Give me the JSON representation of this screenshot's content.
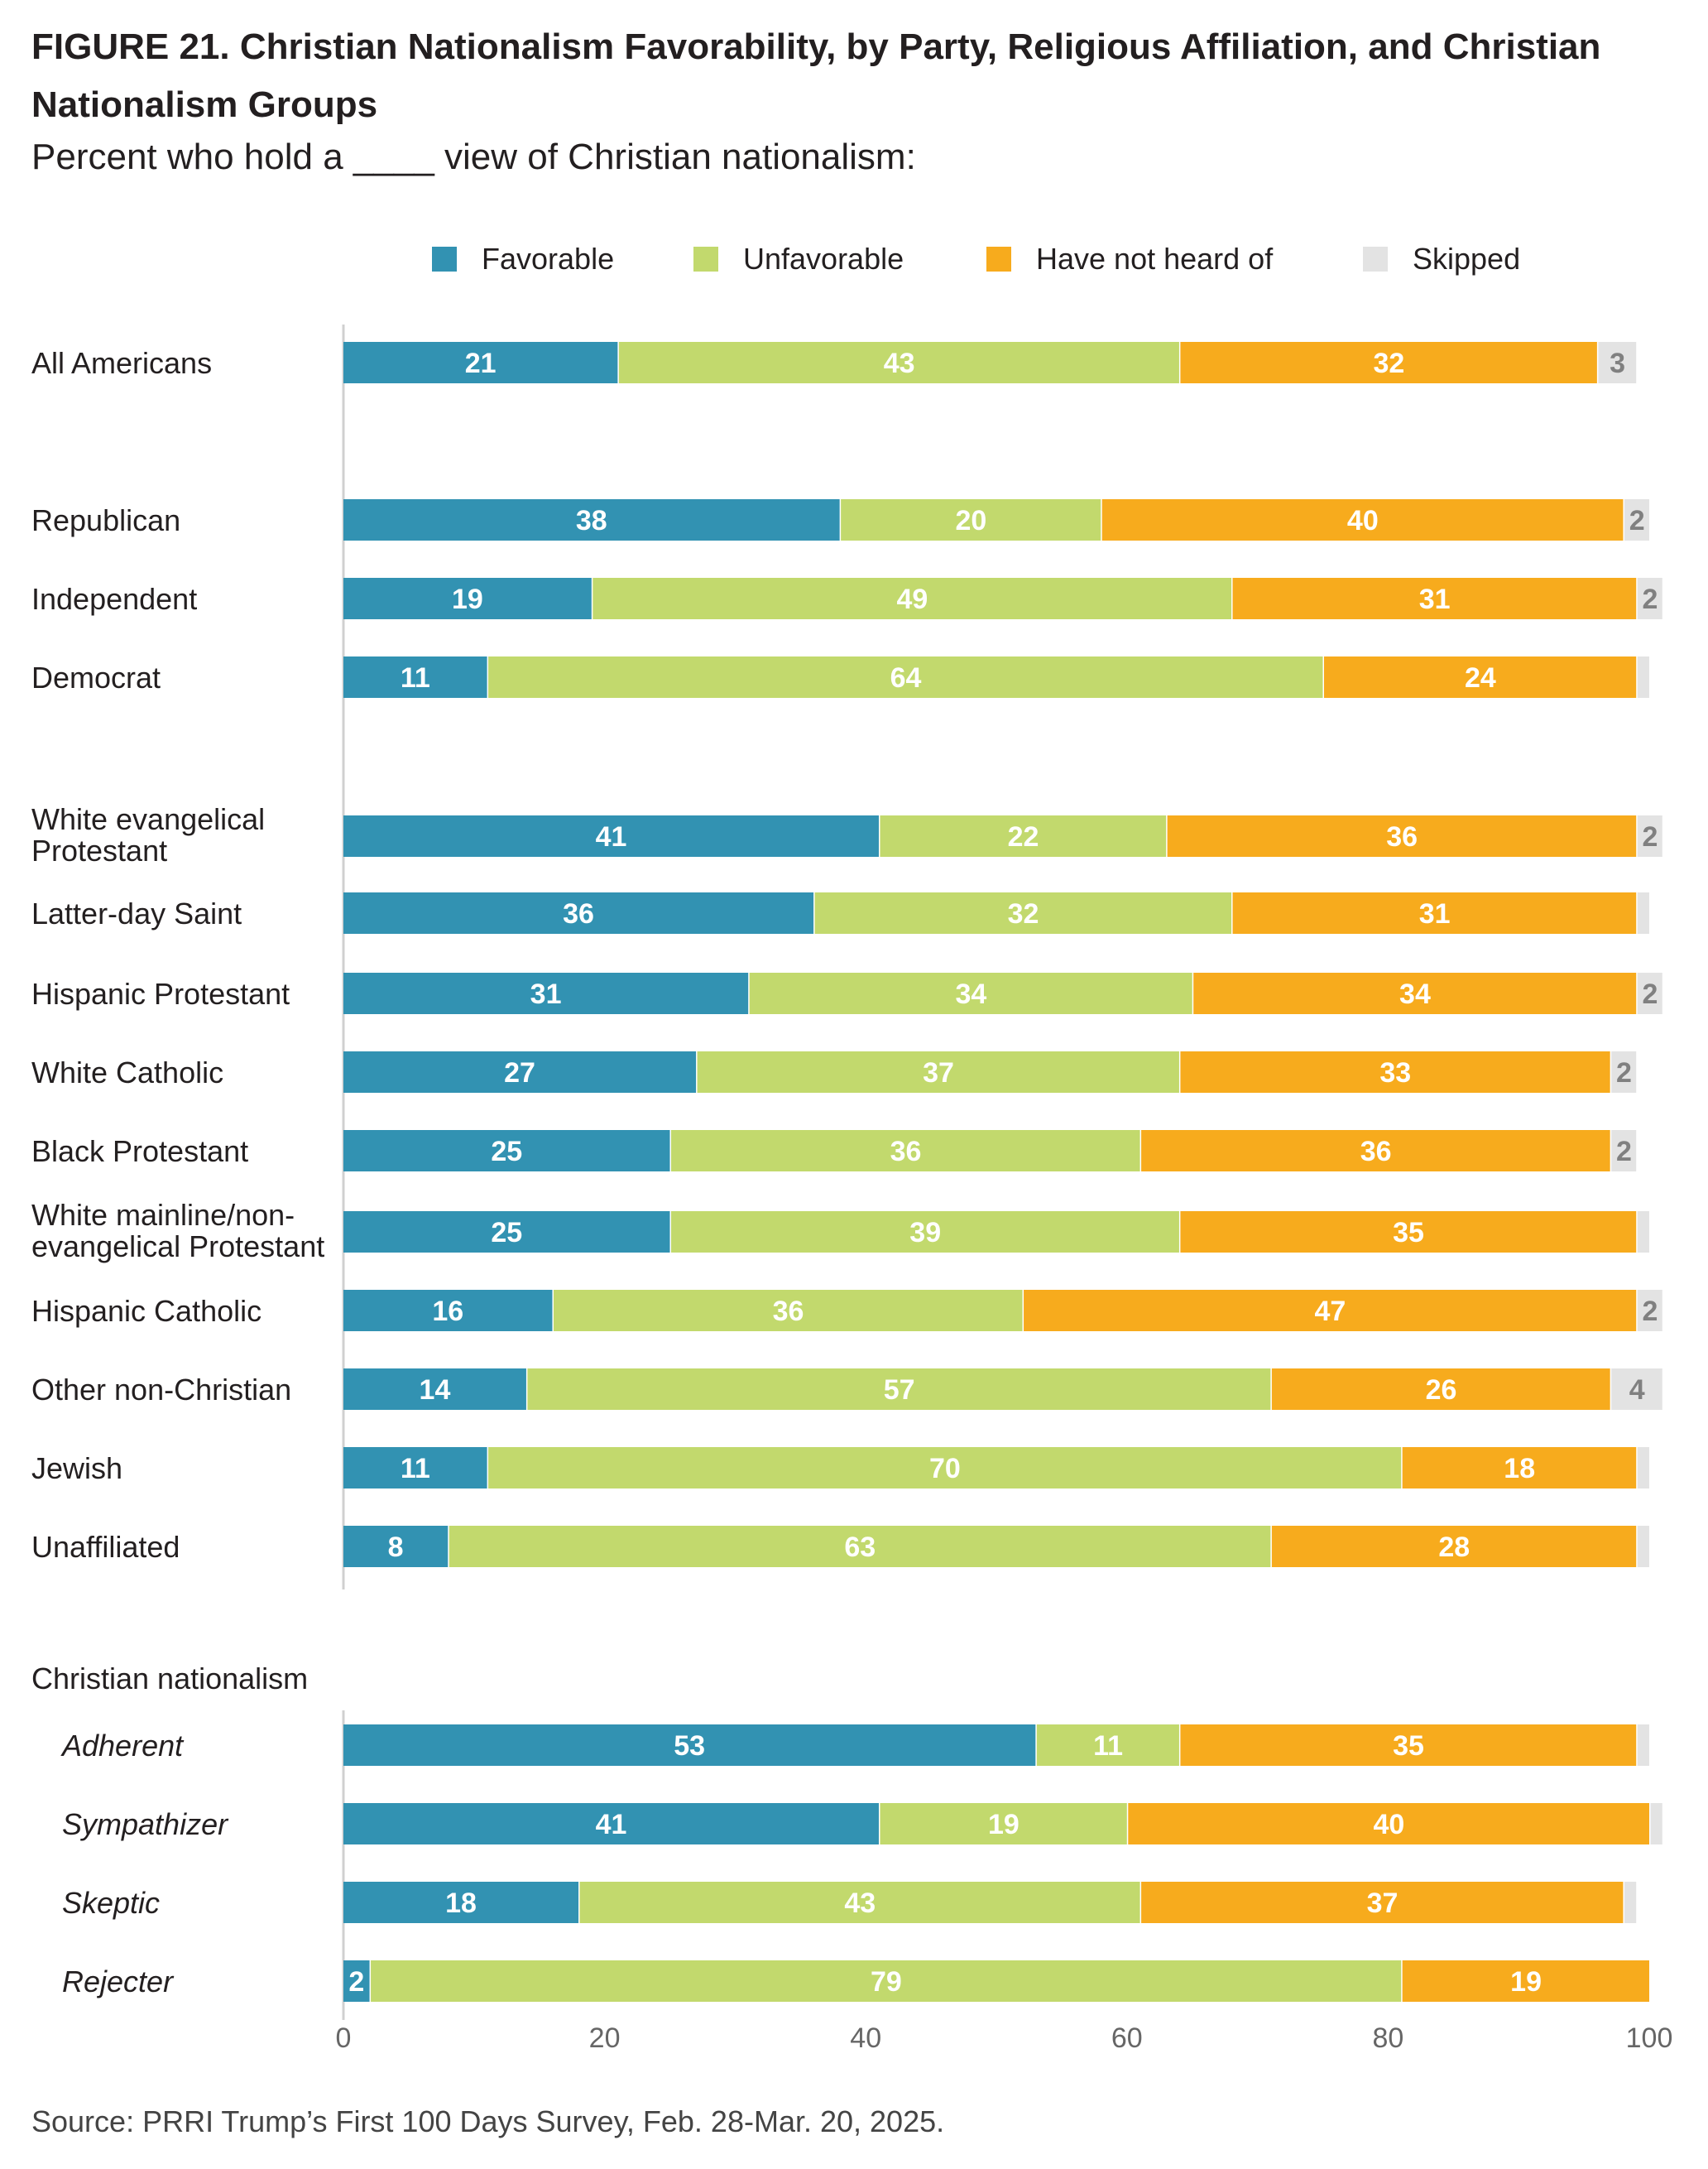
{
  "chart_data": {
    "type": "bar",
    "orientation": "horizontal",
    "stacked": true,
    "title": "FIGURE 21.  Christian Nationalism Favorability, by Party, Religious Affiliation, and Christian Nationalism Groups",
    "subtitle": "Percent who hold a ____ view of Christian nationalism:",
    "legend_position": "top",
    "xlim": [
      0,
      100
    ],
    "x_ticks": [
      0,
      20,
      40,
      60,
      80,
      100
    ],
    "grid": false,
    "colors": {
      "Favorable": "#3292b2",
      "Unfavorable": "#c2d96d",
      "Have not heard of": "#f7ab1d",
      "Skipped": "#e3e3e3"
    },
    "series_names": [
      "Favorable",
      "Unfavorable",
      "Have not heard of",
      "Skipped"
    ],
    "group_header": "Christian nationalism",
    "rows": [
      {
        "label": "All Americans",
        "values": [
          21,
          43,
          32,
          3
        ],
        "labels": [
          "21",
          "43",
          "32",
          "3"
        ]
      },
      {
        "label": "Republican",
        "values": [
          38,
          20,
          40,
          2
        ],
        "labels": [
          "38",
          "20",
          "40",
          "2"
        ]
      },
      {
        "label": "Independent",
        "values": [
          19,
          49,
          31,
          2
        ],
        "labels": [
          "19",
          "49",
          "31",
          "2"
        ]
      },
      {
        "label": "Democrat",
        "values": [
          11,
          64,
          24,
          1
        ],
        "labels": [
          "11",
          "64",
          "24",
          ""
        ]
      },
      {
        "label": "White evangelical Protestant",
        "values": [
          41,
          22,
          36,
          2
        ],
        "labels": [
          "41",
          "22",
          "36",
          "2"
        ]
      },
      {
        "label": "Latter-day Saint",
        "values": [
          36,
          32,
          31,
          1
        ],
        "labels": [
          "36",
          "32",
          "31",
          ""
        ]
      },
      {
        "label": "Hispanic Protestant",
        "values": [
          31,
          34,
          34,
          2
        ],
        "labels": [
          "31",
          "34",
          "34",
          "2"
        ]
      },
      {
        "label": "White Catholic",
        "values": [
          27,
          37,
          33,
          2
        ],
        "labels": [
          "27",
          "37",
          "33",
          "2"
        ]
      },
      {
        "label": "Black Protestant",
        "values": [
          25,
          36,
          36,
          2
        ],
        "labels": [
          "25",
          "36",
          "36",
          "2"
        ]
      },
      {
        "label": "White mainline/non-evangelical Protestant",
        "values": [
          25,
          39,
          35,
          1
        ],
        "labels": [
          "25",
          "39",
          "35",
          ""
        ]
      },
      {
        "label": "Hispanic Catholic",
        "values": [
          16,
          36,
          47,
          2
        ],
        "labels": [
          "16",
          "36",
          "47",
          "2"
        ]
      },
      {
        "label": "Other non-Christian",
        "values": [
          14,
          57,
          26,
          4
        ],
        "labels": [
          "14",
          "57",
          "26",
          "4"
        ]
      },
      {
        "label": "Jewish",
        "values": [
          11,
          70,
          18,
          1
        ],
        "labels": [
          "11",
          "70",
          "18",
          ""
        ]
      },
      {
        "label": "Unaffiliated",
        "values": [
          8,
          63,
          28,
          1
        ],
        "labels": [
          "8",
          "63",
          "28",
          ""
        ]
      },
      {
        "label": "Adherent",
        "values": [
          53,
          11,
          35,
          1
        ],
        "labels": [
          "53",
          "11",
          "35",
          ""
        ]
      },
      {
        "label": "Sympathizer",
        "values": [
          41,
          19,
          40,
          1
        ],
        "labels": [
          "41",
          "19",
          "40",
          ""
        ]
      },
      {
        "label": "Skeptic",
        "values": [
          18,
          43,
          37,
          1
        ],
        "labels": [
          "18",
          "43",
          "37",
          ""
        ]
      },
      {
        "label": "Rejecter",
        "values": [
          2,
          79,
          19,
          0
        ],
        "labels": [
          "2",
          "79",
          "19",
          ""
        ]
      }
    ]
  },
  "source": "Source: PRRI Trump’s First 100 Days Survey, Feb. 28-Mar. 20, 2025."
}
